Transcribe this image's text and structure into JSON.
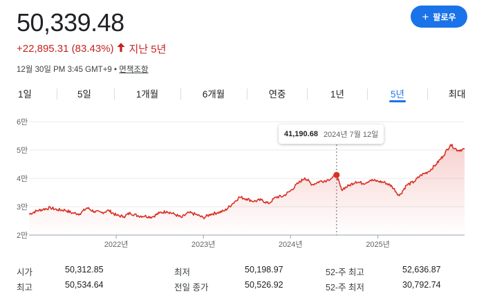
{
  "quote": {
    "price": "50,339.48",
    "change": "+22,895.31 (83.43%)",
    "period": "지난 5년",
    "timestamp": "12월 30일 PM 3:45 GMT+9",
    "separator": "•",
    "disclaimer": "면책조항"
  },
  "follow_button": {
    "label": "팔로우",
    "icon": "plus-icon"
  },
  "tabs": [
    {
      "label": "1일",
      "active": false
    },
    {
      "label": "5일",
      "active": false
    },
    {
      "label": "1개월",
      "active": false
    },
    {
      "label": "6개월",
      "active": false
    },
    {
      "label": "연중",
      "active": false
    },
    {
      "label": "1년",
      "active": false
    },
    {
      "label": "5년",
      "active": true
    },
    {
      "label": "최대",
      "active": false
    }
  ],
  "tooltip": {
    "value": "41,190.68",
    "date": "2024년 7월 12일"
  },
  "colors": {
    "line": "#d93025",
    "accent": "#1a73e8",
    "negative": "#c5221f"
  },
  "chart_data": {
    "type": "area",
    "x_tick_labels": [
      "2022년",
      "2023년",
      "2024년",
      "2025년"
    ],
    "y_tick_labels": [
      "2만",
      "3만",
      "4만",
      "5만",
      "6만"
    ],
    "y_ticks": [
      20000,
      30000,
      40000,
      50000,
      60000
    ],
    "ylim": [
      20000,
      60000
    ],
    "xlim": [
      "2021-01-01",
      "2025-12-30"
    ],
    "grid": true,
    "highlight": {
      "x": "2024-07-12",
      "y": 41190.68
    },
    "series": [
      {
        "points": [
          [
            "2021-01-01",
            27400
          ],
          [
            "2021-02-01",
            28500
          ],
          [
            "2021-03-01",
            29100
          ],
          [
            "2021-04-01",
            29600
          ],
          [
            "2021-05-01",
            28900
          ],
          [
            "2021-06-01",
            28800
          ],
          [
            "2021-07-01",
            27800
          ],
          [
            "2021-08-01",
            27500
          ],
          [
            "2021-09-01",
            29600
          ],
          [
            "2021-10-01",
            28300
          ],
          [
            "2021-11-01",
            27900
          ],
          [
            "2021-12-01",
            28700
          ],
          [
            "2022-01-01",
            27000
          ],
          [
            "2022-02-01",
            26500
          ],
          [
            "2022-03-01",
            27800
          ],
          [
            "2022-04-01",
            26800
          ],
          [
            "2022-05-01",
            26700
          ],
          [
            "2022-06-01",
            26400
          ],
          [
            "2022-07-01",
            27800
          ],
          [
            "2022-08-01",
            28400
          ],
          [
            "2022-09-01",
            27400
          ],
          [
            "2022-10-01",
            26200
          ],
          [
            "2022-11-01",
            27900
          ],
          [
            "2022-12-01",
            27300
          ],
          [
            "2023-01-01",
            26100
          ],
          [
            "2023-02-01",
            27400
          ],
          [
            "2023-03-01",
            27900
          ],
          [
            "2023-04-01",
            28600
          ],
          [
            "2023-05-01",
            30900
          ],
          [
            "2023-06-01",
            33400
          ],
          [
            "2023-07-01",
            32800
          ],
          [
            "2023-08-01",
            31900
          ],
          [
            "2023-09-01",
            32400
          ],
          [
            "2023-10-01",
            31100
          ],
          [
            "2023-11-01",
            33400
          ],
          [
            "2023-12-01",
            33700
          ],
          [
            "2024-01-01",
            35600
          ],
          [
            "2024-02-01",
            38200
          ],
          [
            "2024-03-01",
            40200
          ],
          [
            "2024-04-01",
            37800
          ],
          [
            "2024-05-01",
            38900
          ],
          [
            "2024-06-01",
            39300
          ],
          [
            "2024-07-12",
            41190.68
          ],
          [
            "2024-08-01",
            36100
          ],
          [
            "2024-09-01",
            37400
          ],
          [
            "2024-10-01",
            38900
          ],
          [
            "2024-11-01",
            38200
          ],
          [
            "2024-12-01",
            39400
          ],
          [
            "2025-01-01",
            39000
          ],
          [
            "2025-02-01",
            38500
          ],
          [
            "2025-03-01",
            37200
          ],
          [
            "2025-04-01",
            33900
          ],
          [
            "2025-05-01",
            37600
          ],
          [
            "2025-06-01",
            38800
          ],
          [
            "2025-07-01",
            41200
          ],
          [
            "2025-08-01",
            42400
          ],
          [
            "2025-09-01",
            44900
          ],
          [
            "2025-10-01",
            47900
          ],
          [
            "2025-11-01",
            51900
          ],
          [
            "2025-12-01",
            49900
          ],
          [
            "2025-12-30",
            50339.48
          ]
        ]
      }
    ]
  },
  "stats": [
    [
      {
        "label": "시가",
        "value": "50,312.85"
      },
      {
        "label": "최저",
        "value": "50,198.97"
      },
      {
        "label": "52-주 최고",
        "value": "52,636.87"
      }
    ],
    [
      {
        "label": "최고",
        "value": "50,534.64"
      },
      {
        "label": "전일 종가",
        "value": "50,526.92"
      },
      {
        "label": "52-주 최저",
        "value": "30,792.74"
      }
    ]
  ]
}
